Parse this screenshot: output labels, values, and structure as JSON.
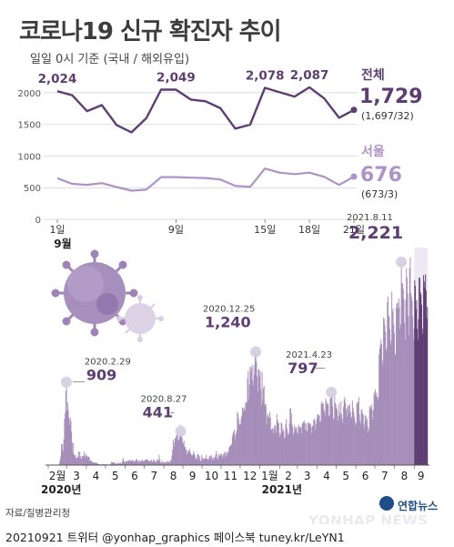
{
  "title": "코로나19 신규 확진자 추이",
  "subtitle": "일일 0시 기준 (국내 / 해외유입)",
  "colors": {
    "total": "#5e3d73",
    "seoul": "#ad93c6",
    "bars": "#a58db9",
    "bars_highlight": "#5e3d73",
    "marker": "#d6cfe2",
    "grid": "#cfcfd6"
  },
  "chart_data": [
    {
      "type": "line",
      "title": "",
      "xlabel": "",
      "ylabel": "",
      "ylim": [
        0,
        2200
      ],
      "yticks": [
        0,
        500,
        1000,
        1500,
        2000
      ],
      "ytick_labels": [
        "0",
        "500",
        "1000",
        "1500",
        "2000"
      ],
      "x": [
        1,
        2,
        3,
        4,
        5,
        6,
        7,
        8,
        9,
        10,
        11,
        12,
        13,
        14,
        15,
        16,
        17,
        18,
        19,
        20,
        21
      ],
      "xtick_values": [
        1,
        9,
        15,
        18,
        21
      ],
      "xtick_labels": [
        "1일",
        "9일",
        "15일",
        "18일",
        "21일"
      ],
      "month_label": "9월",
      "series": [
        {
          "name": "전체",
          "values": [
            2024,
            1961,
            1709,
            1804,
            1490,
            1375,
            1597,
            2049,
            2049,
            1892,
            1865,
            1755,
            1433,
            1495,
            2078,
            2008,
            1940,
            2087,
            1910,
            1605,
            1729
          ],
          "latest": "1,729",
          "breakdown": "(1,697/32)",
          "point_labels": [
            {
              "x": 1,
              "text": "2,024"
            },
            {
              "x": 9,
              "text": "2,049"
            },
            {
              "x": 15,
              "text": "2,078"
            },
            {
              "x": 18,
              "text": "2,087"
            }
          ]
        },
        {
          "name": "서울",
          "values": [
            650,
            561,
            545,
            572,
            510,
            453,
            469,
            667,
            667,
            658,
            653,
            630,
            529,
            512,
            803,
            737,
            715,
            738,
            672,
            544,
            676
          ],
          "latest": "676",
          "breakdown": "(673/3)"
        }
      ]
    },
    {
      "type": "bar",
      "title": "",
      "xlabel": "",
      "ylabel": "",
      "ylim": [
        0,
        2300
      ],
      "x_tick_labels": [
        "2월",
        "3",
        "4",
        "5",
        "6",
        "7",
        "8",
        "9",
        "10",
        "11",
        "12",
        "1월",
        "2",
        "3",
        "4",
        "5",
        "6",
        "7",
        "8",
        "9"
      ],
      "year_labels": [
        "2020년",
        "2021년"
      ],
      "monthly_profile": [
        {
          "month": "2020-02",
          "values": [
            0,
            0,
            0,
            0,
            0,
            0,
            0,
            0,
            0,
            0,
            0,
            0,
            0,
            0,
            0,
            0,
            2,
            20,
            53,
            100,
            229,
            169,
            231,
            143,
            284,
            505,
            571,
            813,
            909
          ]
        },
        {
          "month": "2020-03",
          "values": [
            595,
            686,
            600,
            516,
            438,
            518,
            483,
            367,
            248,
            131,
            242,
            114,
            110,
            107,
            76,
            74,
            84,
            93,
            152,
            87,
            147,
            98,
            64,
            76,
            100,
            104,
            91,
            146,
            105,
            78,
            125
          ]
        },
        {
          "month": "2020-04",
          "values": [
            101,
            89,
            86,
            94,
            81,
            47,
            47,
            53,
            39,
            27,
            30,
            32,
            25,
            27,
            27,
            22,
            22,
            18,
            8,
            13,
            9,
            11,
            8,
            6,
            10,
            10,
            10,
            14,
            9,
            4
          ]
        },
        {
          "month": "2020-05",
          "values": [
            9,
            6,
            13,
            8,
            3,
            2,
            4,
            12,
            18,
            34,
            35,
            27,
            26,
            29,
            27,
            19,
            13,
            15,
            13,
            32,
            12,
            20,
            23,
            25,
            16,
            19,
            40,
            79,
            58,
            39,
            27
          ]
        },
        {
          "month": "2020-06",
          "values": [
            35,
            38,
            49,
            39,
            39,
            51,
            57,
            38,
            50,
            45,
            56,
            48,
            49,
            37,
            34,
            43,
            59,
            49,
            67,
            48,
            17,
            46,
            51,
            28,
            39,
            51,
            62,
            42,
            42,
            43
          ]
        },
        {
          "month": "2020-07",
          "values": [
            51,
            54,
            63,
            63,
            61,
            48,
            44,
            50,
            45,
            35,
            44,
            62,
            33,
            39,
            61,
            60,
            39,
            34,
            26,
            45,
            63,
            59,
            41,
            113,
            58,
            25,
            28,
            48,
            18,
            36,
            31
          ]
        },
        {
          "month": "2020-08",
          "values": [
            30,
            23,
            34,
            33,
            43,
            20,
            43,
            36,
            28,
            34,
            54,
            56,
            103,
            166,
            279,
            197,
            246,
            297,
            288,
            324,
            332,
            397,
            266,
            280,
            320,
            441,
            371,
            323,
            299,
            248
          ]
        },
        {
          "month": "2020-09",
          "values": [
            235,
            267,
            195,
            198,
            168,
            167,
            119,
            136,
            156,
            155,
            176,
            136,
            121,
            109,
            106,
            113,
            153,
            126,
            110,
            82,
            70,
            61,
            110,
            125,
            114,
            61,
            95,
            50,
            38,
            113
          ]
        },
        {
          "month": "2020-10",
          "values": [
            77,
            63,
            75,
            64,
            73,
            75,
            114,
            69,
            54,
            72,
            58,
            97,
            102,
            84,
            110,
            47,
            73,
            91,
            76,
            58,
            89,
            121,
            155,
            77,
            61,
            119,
            88,
            103,
            125,
            114
          ]
        },
        {
          "month": "2020-11",
          "values": [
            124,
            97,
            75,
            118,
            125,
            145,
            89,
            143,
            126,
            100,
            146,
            143,
            191,
            205,
            208,
            223,
            230,
            313,
            343,
            363,
            386,
            330,
            271,
            349,
            382,
            583,
            569,
            504,
            450,
            438
          ]
        },
        {
          "month": "2020-12",
          "values": [
            451,
            511,
            540,
            629,
            583,
            631,
            615,
            594,
            686,
            682,
            689,
            950,
            1030,
            718,
            880,
            1078,
            1014,
            1062,
            1097,
            926,
            869,
            1092,
            985,
            1241,
            1240,
            1132,
            970,
            808,
            1046,
            1050,
            967
          ]
        },
        {
          "month": "2021-01",
          "values": [
            1029,
            824,
            657,
            1020,
            715,
            838,
            869,
            674,
            641,
            665,
            451,
            537,
            562,
            524,
            512,
            580,
            520,
            389,
            386,
            404,
            401,
            346,
            431,
            392,
            437,
            349,
            559,
            497,
            469,
            458,
            355
          ]
        },
        {
          "month": "2021-02",
          "values": [
            305,
            336,
            467,
            451,
            370,
            393,
            372,
            289,
            303,
            444,
            504,
            403,
            362,
            326,
            344,
            457,
            621,
            621,
            561,
            448,
            416,
            332,
            357,
            440,
            396,
            406,
            415,
            355
          ]
        },
        {
          "month": "2021-03",
          "values": [
            344,
            444,
            424,
            398,
            418,
            416,
            346,
            446,
            470,
            465,
            488,
            459,
            382,
            459,
            382,
            363,
            469,
            445,
            463,
            452,
            456,
            415,
            346,
            428,
            430,
            494,
            505,
            482,
            384,
            447,
            506
          ]
        },
        {
          "month": "2021-04",
          "values": [
            551,
            557,
            543,
            543,
            473,
            478,
            668,
            700,
            671,
            677,
            614,
            587,
            542,
            731,
            698,
            673,
            658,
            672,
            532,
            549,
            731,
            735,
            797,
            785,
            644,
            500,
            512,
            769,
            680,
            661
          ]
        },
        {
          "month": "2021-05",
          "values": [
            627,
            606,
            488,
            541,
            676,
            574,
            525,
            701,
            564,
            463,
            511,
            635,
            715,
            747,
            681,
            610,
            619,
            528,
            654,
            646,
            561,
            666,
            585,
            530,
            516,
            707,
            629,
            587,
            533,
            480,
            430
          ]
        },
        {
          "month": "2021-06",
          "values": [
            459,
            677,
            681,
            695,
            744,
            556,
            485,
            454,
            602,
            611,
            565,
            556,
            452,
            399,
            545,
            540,
            482,
            507,
            429,
            357,
            395,
            645,
            610,
            634,
            668,
            614,
            501,
            595,
            794,
            762
          ]
        },
        {
          "month": "2021-07",
          "values": [
            826,
            761,
            794,
            743,
            711,
            746,
            1212,
            1275,
            1316,
            1378,
            1324,
            1100,
            1150,
            1615,
            1600,
            1536,
            1454,
            1252,
            1278,
            1784,
            1842,
            1630,
            1629,
            1487,
            1318,
            1365,
            1896,
            1674,
            1710,
            1539,
            1442
          ]
        },
        {
          "month": "2021-08",
          "values": [
            1218,
            1202,
            1725,
            1775,
            1776,
            1704,
            1823,
            1729,
            1492,
            1540,
            2221,
            1987,
            1990,
            1928,
            1816,
            1556,
            1372,
            1805,
            2152,
            2052,
            1880,
            1629,
            1418,
            2155,
            2273,
            1882,
            1841,
            1793,
            1619,
            1372,
            1491
          ]
        },
        {
          "month": "2021-09",
          "values": [
            2024,
            1961,
            1709,
            1804,
            1490,
            1375,
            1597,
            2049,
            2049,
            1892,
            1865,
            1755,
            1433,
            1495,
            2078,
            2008,
            1940,
            2087,
            1910,
            1605,
            1729
          ]
        }
      ],
      "annotations": [
        {
          "date": "2020.2.29",
          "value": "909"
        },
        {
          "date": "2020.8.27",
          "value": "441"
        },
        {
          "date": "2020.12.25",
          "value": "1,240"
        },
        {
          "date": "2021.4.23",
          "value": "797"
        },
        {
          "date": "2021.8.11",
          "value": "2,221"
        }
      ]
    }
  ],
  "footer": {
    "source": "자료/질병관리청",
    "credits": "20210921  트위터 @yonhap_graphics  페이스북 tuney.kr/LeYN1",
    "brand": "연합뉴스",
    "wordmark": "YONHAP NEWS"
  }
}
